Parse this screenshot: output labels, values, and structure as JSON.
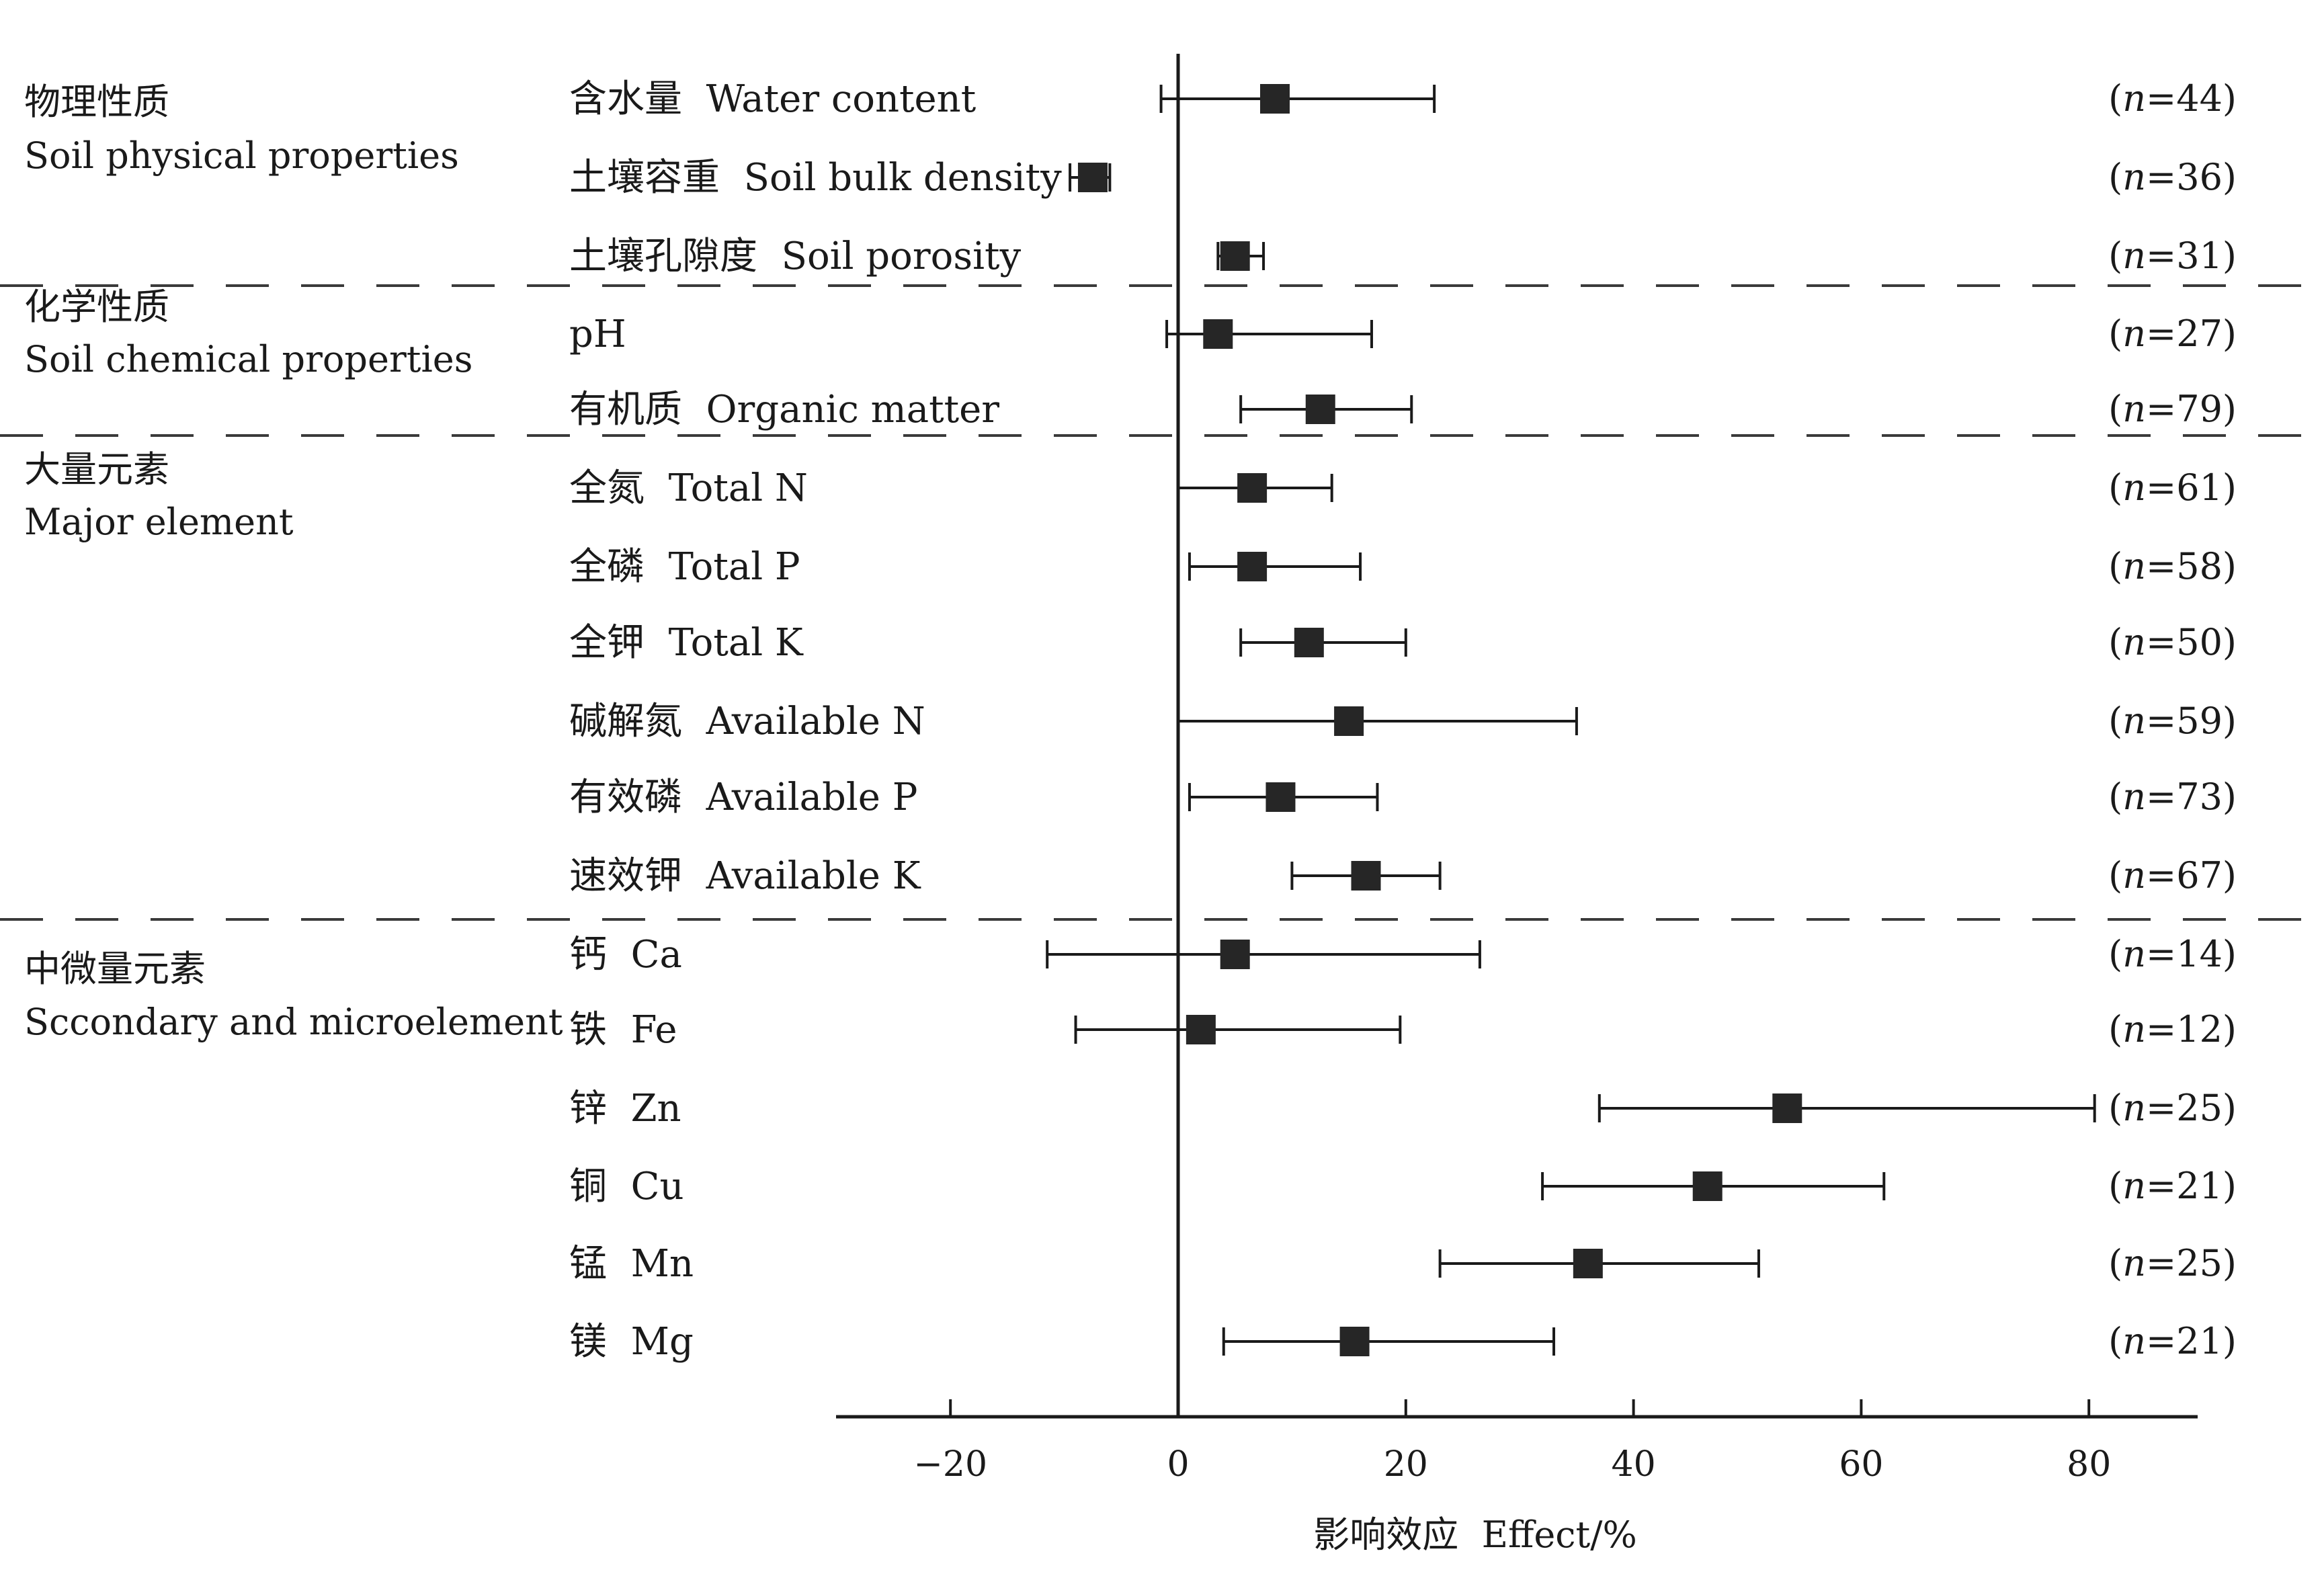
{
  "chart_data": {
    "type": "forest",
    "title": "",
    "xlabel": "影响效应  Effect/%",
    "xlim": [
      -30,
      90
    ],
    "xticks": [
      -20,
      0,
      20,
      40,
      60,
      80
    ],
    "xtick_labels": [
      "−20",
      "0",
      "20",
      "40",
      "60",
      "80"
    ],
    "reference_line": 0,
    "groups": [
      {
        "name_cn": "物理性质",
        "name_en": "Soil physical properties",
        "rows": [
          {
            "label": "含水量  Water content",
            "effect": 8.5,
            "ci": [
              -1.5,
              22.5
            ],
            "n": "44"
          },
          {
            "label": "土壤容重  Soil bulk density",
            "effect": -7.5,
            "ci": [
              -9.5,
              -6.0
            ],
            "n": "36"
          },
          {
            "label": "土壤孔隙度  Soil porosity",
            "effect": 5.0,
            "ci": [
              3.5,
              7.5
            ],
            "n": "31"
          }
        ]
      },
      {
        "name_cn": "化学性质",
        "name_en": "Soil chemical properties",
        "rows": [
          {
            "label": "pH",
            "effect": 3.5,
            "ci": [
              -1.0,
              17.0
            ],
            "n": "27"
          },
          {
            "label": "有机质  Organic matter",
            "effect": 12.5,
            "ci": [
              5.5,
              20.5
            ],
            "n": "79"
          }
        ]
      },
      {
        "name_cn": "大量元素",
        "name_en": "Major element",
        "rows": [
          {
            "label": "全氮  Total N",
            "effect": 6.5,
            "ci": [
              0.0,
              13.5
            ],
            "n": "61"
          },
          {
            "label": "全磷  Total P",
            "effect": 6.5,
            "ci": [
              1.0,
              16.0
            ],
            "n": "58"
          },
          {
            "label": "全钾  Total K",
            "effect": 11.5,
            "ci": [
              5.5,
              20.0
            ],
            "n": "50"
          },
          {
            "label": "碱解氮  Available N",
            "effect": 15.0,
            "ci": [
              0.0,
              35.0
            ],
            "n": "59"
          },
          {
            "label": "有效磷  Available P",
            "effect": 9.0,
            "ci": [
              1.0,
              17.5
            ],
            "n": "73"
          },
          {
            "label": "速效钾  Available K",
            "effect": 16.5,
            "ci": [
              10.0,
              23.0
            ],
            "n": "67"
          }
        ]
      },
      {
        "name_cn": "中微量元素",
        "name_en": "Sccondary and microelement",
        "rows": [
          {
            "label": "钙  Ca",
            "effect": 5.0,
            "ci": [
              -11.5,
              26.5
            ],
            "n": "14"
          },
          {
            "label": "铁  Fe",
            "effect": 2.0,
            "ci": [
              -9.0,
              19.5
            ],
            "n": "12"
          },
          {
            "label": "锌  Zn",
            "effect": 53.5,
            "ci": [
              37.0,
              80.5
            ],
            "n": "25"
          },
          {
            "label": "铜  Cu",
            "effect": 46.5,
            "ci": [
              32.0,
              62.0
            ],
            "n": "21"
          },
          {
            "label": "锰  Mn",
            "effect": 36.0,
            "ci": [
              23.0,
              51.0
            ],
            "n": "25"
          },
          {
            "label": "镁  Mg",
            "effect": 15.5,
            "ci": [
              4.0,
              33.0
            ],
            "n": "21"
          }
        ]
      }
    ]
  }
}
